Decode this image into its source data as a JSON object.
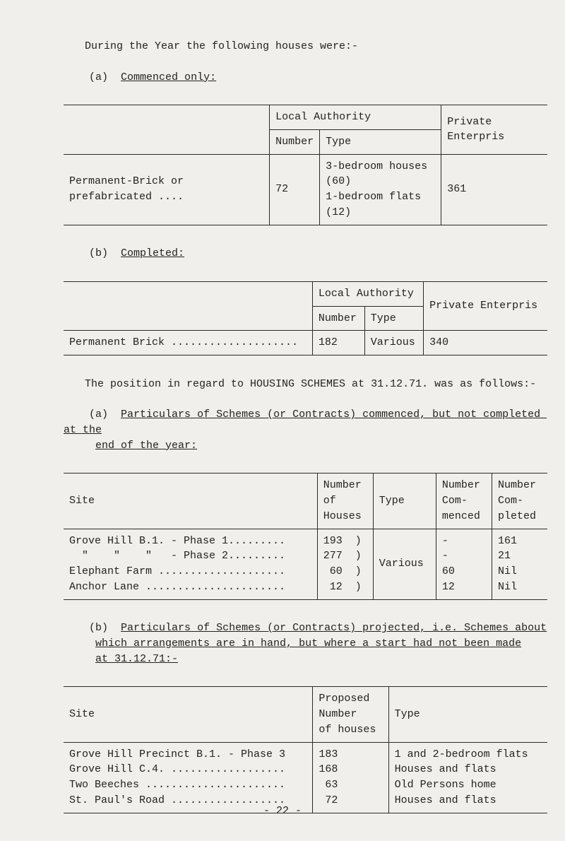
{
  "intro": {
    "line1": "During the Year the following houses were:-",
    "a_label": "(a)",
    "a_text": "Commenced only:"
  },
  "table1": {
    "h_local_auth": "Local Authority",
    "h_number": "Number",
    "h_type": "Type",
    "h_private": "Private Enterpris",
    "row_label": "Permanent-Brick or prefabricated ....",
    "row_number": "72",
    "row_type_l1": "3-bedroom houses (60)",
    "row_type_l2": "1-bedroom flats  (12)",
    "row_private": "361"
  },
  "b_label": "(b)",
  "b_text": "Completed:",
  "table2": {
    "h_local_auth": "Local Authority",
    "h_number": "Number",
    "h_type": "Type",
    "h_private": "Private Enterpris",
    "row_label": "Permanent Brick ....................",
    "row_number": "182",
    "row_type": "Various",
    "row_private": "340"
  },
  "mid": {
    "line1": "The position in regard to HOUSING SCHEMES at 31.12.71. was as follows:-",
    "a2_label": "(a)",
    "a2_text_l1": "Particulars of Schemes (or Contracts) commenced, but not completed at the",
    "a2_text_l2": "end of the year:"
  },
  "table3": {
    "h_site": "Site",
    "h_num_houses_l1": "Number",
    "h_num_houses_l2": "of",
    "h_num_houses_l3": "Houses",
    "h_type": "Type",
    "h_num_com_l1": "Number",
    "h_num_com_l2": "Com-",
    "h_num_com_l3": "menced",
    "h_num_comp_l1": "Number",
    "h_num_comp_l2": "Com-",
    "h_num_comp_l3": "pleted",
    "rows": [
      {
        "site": "Grove Hill B.1. - Phase 1.........",
        "nh": "193  )",
        "nc": "-",
        "ncp": "161"
      },
      {
        "site": "  \"    \"    \"   - Phase 2.........",
        "nh": "277  )",
        "nc": "-",
        "ncp": "21"
      },
      {
        "site": "Elephant Farm ....................",
        "nh": " 60  )",
        "nc": "60",
        "ncp": "Nil"
      },
      {
        "site": "Anchor Lane ......................",
        "nh": " 12  )",
        "nc": "12",
        "ncp": "Nil"
      }
    ],
    "type_shared": "Various"
  },
  "b2_label": "(b)",
  "b2_text_l1": "Particulars of Schemes (or Contracts) projected, i.e. Schemes about",
  "b2_text_l2": "which arrangements are in hand, but where a start had not been made",
  "b2_text_l3": "at 31.12.71:-",
  "table4": {
    "h_site": "Site",
    "h_prop_l1": "Proposed",
    "h_prop_l2": "Number",
    "h_prop_l3": "of houses",
    "h_type": "Type",
    "rows": [
      {
        "site": "Grove Hill Precinct B.1. - Phase 3",
        "n": "183",
        "t": "1 and 2-bedroom flats"
      },
      {
        "site": "Grove Hill C.4. ..................",
        "n": "168",
        "t": "Houses and flats"
      },
      {
        "site": "Two Beeches ......................",
        "n": " 63",
        "t": "Old Persons home"
      },
      {
        "site": "St. Paul's Road ..................",
        "n": " 72",
        "t": "Houses and flats"
      }
    ]
  },
  "page_number": "- 22 -"
}
